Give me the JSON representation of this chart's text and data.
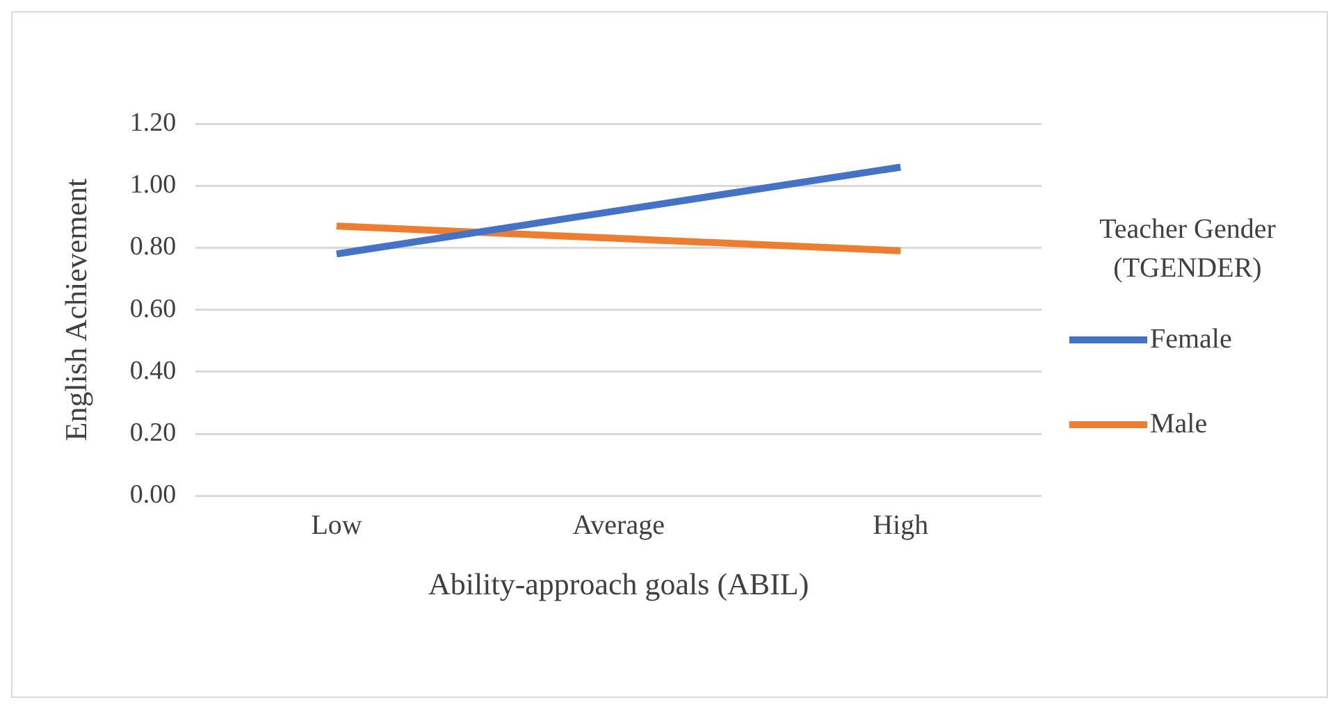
{
  "chart_data": {
    "type": "line",
    "xlabel": "Ability-approach goals (ABIL)",
    "ylabel": "English Achievement",
    "legend_title": "Teacher Gender (TGENDER)",
    "categories": [
      "Low",
      "Average",
      "High"
    ],
    "series": [
      {
        "name": "Female",
        "color": "#4472c4",
        "values": [
          0.78,
          0.92,
          1.06
        ]
      },
      {
        "name": "Male",
        "color": "#ed7d31",
        "values": [
          0.87,
          0.83,
          0.79
        ]
      }
    ],
    "ylim": [
      0,
      1.2
    ],
    "yticks": [
      {
        "value": 0,
        "label": "0.00"
      },
      {
        "value": 0.2,
        "label": "0.20"
      },
      {
        "value": 0.4,
        "label": "0.40"
      },
      {
        "value": 0.6,
        "label": "0.60"
      },
      {
        "value": 0.8,
        "label": "0.80"
      },
      {
        "value": 1,
        "label": "1.00"
      },
      {
        "value": 1.2,
        "label": "1.20"
      }
    ],
    "grid": "y",
    "legend": "right",
    "marker": "none",
    "line_style": "solid"
  }
}
